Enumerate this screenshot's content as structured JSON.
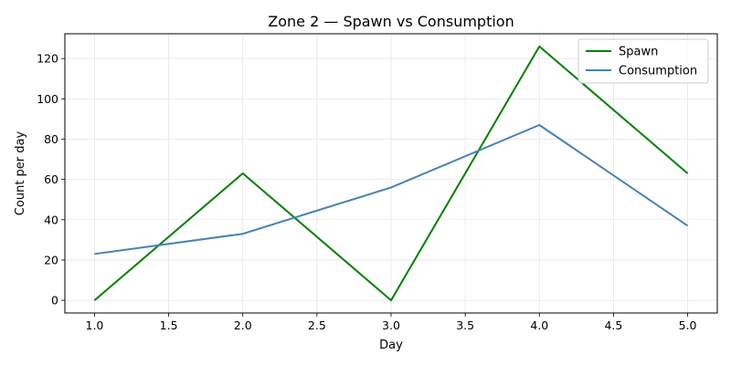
{
  "chart_data": {
    "type": "line",
    "title": "Zone 2 — Spawn vs Consumption",
    "xlabel": "Day",
    "ylabel": "Count per day",
    "x": [
      1.0,
      2.0,
      3.0,
      4.0,
      5.0
    ],
    "xlim": [
      0.8,
      5.2
    ],
    "ylim": [
      -6.3,
      132.3
    ],
    "x_ticks": [
      "1.0",
      "1.5",
      "2.0",
      "2.5",
      "3.0",
      "3.5",
      "4.0",
      "4.5",
      "5.0"
    ],
    "y_ticks": [
      "0",
      "20",
      "40",
      "60",
      "80",
      "100",
      "120"
    ],
    "grid": true,
    "legend_position": "top-right",
    "series": [
      {
        "name": "Spawn",
        "values": [
          0,
          63,
          0,
          126,
          63
        ],
        "color": "#008000"
      },
      {
        "name": "Consumption",
        "values": [
          23,
          33,
          56,
          87,
          37
        ],
        "color": "#4682b4"
      }
    ]
  }
}
